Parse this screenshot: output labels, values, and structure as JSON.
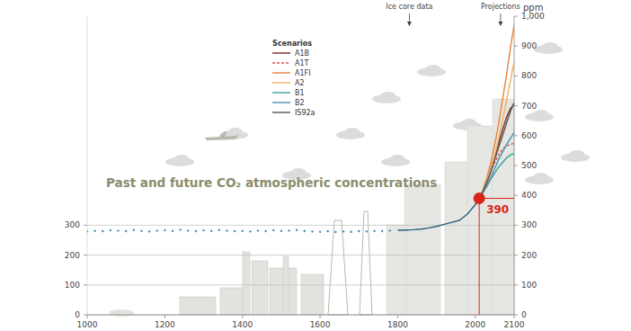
{
  "chart_data": {
    "type": "line",
    "title": "Past and future CO₂ atmospheric concentrations",
    "y2_label": "ppm",
    "legend_title": "Scenarios",
    "legend": "top",
    "grid": true,
    "xlim": [
      1000,
      2100
    ],
    "xticks": [
      1000,
      1200,
      1400,
      1600,
      1800,
      2000,
      2100
    ],
    "ylim": [
      0,
      1000
    ],
    "yticks": [
      0,
      100,
      200,
      300
    ],
    "y2lim": [
      0,
      1000
    ],
    "y2ticks": [
      0,
      100,
      200,
      300,
      400,
      500,
      600,
      700,
      800,
      900,
      {
        "value": 1000,
        "label": "1,000"
      }
    ],
    "top_labels": [
      {
        "x": 1830,
        "text": "Ice core data"
      },
      {
        "x": 2065,
        "text": "Projections"
      }
    ],
    "annotations": [
      {
        "x": 2010,
        "y": 390
      }
    ],
    "series": [
      {
        "type": "scatter",
        "marker": "dot",
        "color": "#4a8db5",
        "x": [
          1000,
          1020,
          1040,
          1060,
          1080,
          1100,
          1120,
          1140,
          1160,
          1180,
          1200,
          1220,
          1240,
          1260,
          1280,
          1300,
          1320,
          1340,
          1360,
          1380,
          1400,
          1420,
          1440,
          1460,
          1480,
          1500,
          1520,
          1540,
          1560,
          1580,
          1600,
          1620,
          1640,
          1660,
          1680,
          1700,
          1720,
          1740,
          1760,
          1780
        ],
        "values": [
          279,
          281,
          280,
          283,
          282,
          280,
          284,
          281,
          279,
          282,
          283,
          281,
          285,
          282,
          280,
          283,
          281,
          284,
          282,
          280,
          281,
          279,
          282,
          280,
          283,
          281,
          282,
          284,
          281,
          279,
          278,
          280,
          277,
          279,
          278,
          280,
          279,
          281,
          280,
          282
        ]
      },
      {
        "type": "line",
        "color": "#2a5f7a",
        "x": [
          1800,
          1820,
          1840,
          1860,
          1880,
          1900,
          1920,
          1940,
          1960,
          1980,
          2000,
          2010
        ],
        "values": [
          283,
          284,
          285,
          287,
          291,
          296,
          303,
          310,
          317,
          338,
          369,
          390
        ]
      },
      {
        "name": "A1B",
        "color": "#7a2a2a",
        "line_style": "solid",
        "x": [
          2000,
          2010,
          2020,
          2030,
          2040,
          2050,
          2060,
          2070,
          2080,
          2090,
          2100
        ],
        "values": [
          369,
          390,
          415,
          445,
          485,
          530,
          575,
          620,
          660,
          690,
          705
        ]
      },
      {
        "name": "A1T",
        "color": "#d9534f",
        "line_style": "dashed",
        "x": [
          2000,
          2010,
          2020,
          2030,
          2040,
          2050,
          2060,
          2070,
          2080,
          2090,
          2100
        ],
        "values": [
          369,
          390,
          415,
          445,
          480,
          510,
          535,
          555,
          565,
          570,
          575
        ]
      },
      {
        "name": "A1FI",
        "color": "#e8833a",
        "line_style": "solid",
        "x": [
          2000,
          2010,
          2020,
          2030,
          2040,
          2050,
          2060,
          2070,
          2080,
          2090,
          2100
        ],
        "values": [
          369,
          390,
          420,
          460,
          510,
          570,
          640,
          720,
          800,
          890,
          970
        ]
      },
      {
        "name": "A2",
        "color": "#f0b060",
        "line_style": "solid",
        "x": [
          2000,
          2010,
          2020,
          2030,
          2040,
          2050,
          2060,
          2070,
          2080,
          2090,
          2100
        ],
        "values": [
          369,
          390,
          418,
          450,
          490,
          535,
          590,
          650,
          715,
          780,
          850
        ]
      },
      {
        "name": "B1",
        "color": "#3aa39a",
        "line_style": "solid",
        "x": [
          2000,
          2010,
          2020,
          2030,
          2040,
          2050,
          2060,
          2070,
          2080,
          2090,
          2100
        ],
        "values": [
          369,
          390,
          410,
          430,
          455,
          475,
          495,
          510,
          525,
          535,
          540
        ]
      },
      {
        "name": "B2",
        "color": "#4a90b0",
        "line_style": "solid",
        "x": [
          2000,
          2010,
          2020,
          2030,
          2040,
          2050,
          2060,
          2070,
          2080,
          2090,
          2100
        ],
        "values": [
          369,
          390,
          410,
          435,
          460,
          490,
          520,
          545,
          570,
          590,
          610
        ]
      },
      {
        "name": "IS92a",
        "color": "#555555",
        "line_style": "solid",
        "x": [
          2000,
          2010,
          2020,
          2030,
          2040,
          2050,
          2060,
          2070,
          2080,
          2090,
          2100
        ],
        "values": [
          369,
          390,
          415,
          445,
          480,
          520,
          560,
          600,
          640,
          680,
          710
        ]
      }
    ]
  }
}
